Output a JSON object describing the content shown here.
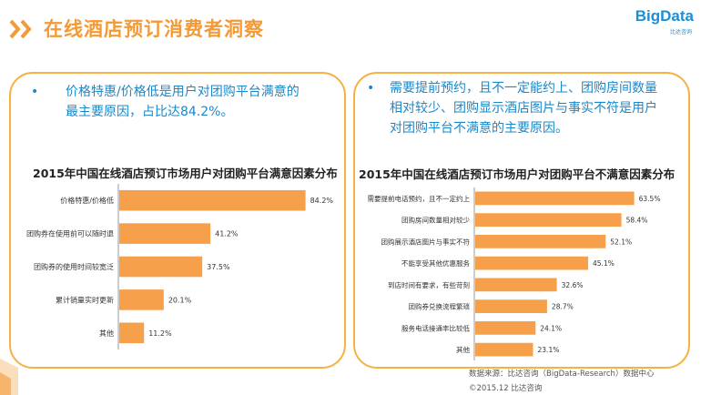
{
  "header": {
    "title": "在线酒店预订消费者洞察",
    "logo_text": "BigData",
    "logo_sub": "比达咨询",
    "accent_color": "#f39a36",
    "brand_color": "#1b8fd6"
  },
  "left_panel": {
    "bullet": "•",
    "text_line1": "价格特惠/价格低是用户对团购平台满意的",
    "text_line2": "最主要原因，占比达84.2%。"
  },
  "right_panel": {
    "bullet": "•",
    "text_line1": "需要提前预约，且不一定能约上、团购房间数量",
    "text_line2": "相对较少、团购显示酒店图片与事实不符是用户",
    "text_line3": "对团购平台不满意的主要原因。"
  },
  "chart_data": [
    {
      "type": "bar",
      "orientation": "horizontal",
      "title": "2015年中国在线酒店预订市场用户对团购平台满意因素分布",
      "categories": [
        "价格特惠/价格低",
        "团购券在使用前可以随时退",
        "团购券的使用时间较宽泛",
        "累计销量实时更新",
        "其他"
      ],
      "values": [
        84.2,
        41.2,
        37.5,
        20.1,
        11.2
      ],
      "value_labels": [
        "84.2%",
        "41.2%",
        "37.5%",
        "20.1%",
        "11.2%"
      ],
      "unit": "%",
      "xlim": [
        0,
        100
      ],
      "color": "#f7a04b",
      "grid": false
    },
    {
      "type": "bar",
      "orientation": "horizontal",
      "title": "2015年中国在线酒店预订市场用户对团购平台不满意因素分布",
      "categories": [
        "需要提前电话预约，且不一定约上",
        "团购房间数量相对较少",
        "团购展示酒店图片与事实不符",
        "不能享受其他优惠服务",
        "到店时间有要求，有些苛刻",
        "团购券兑换流程繁琐",
        "服务电话接通率比较低",
        "其他"
      ],
      "values": [
        63.5,
        58.4,
        52.1,
        45.1,
        32.6,
        28.7,
        24.1,
        23.1
      ],
      "value_labels": [
        "63.5%",
        "58.4%",
        "52.1%",
        "45.1%",
        "32.6%",
        "28.7%",
        "24.1%",
        "23.1%"
      ],
      "unit": "%",
      "xlim": [
        0,
        80
      ],
      "color": "#f7a04b",
      "grid": false
    }
  ],
  "footer": {
    "source": "数据来源：比达咨询（BigData-Research）数据中心",
    "copyright": "©2015.12  比达咨询"
  }
}
